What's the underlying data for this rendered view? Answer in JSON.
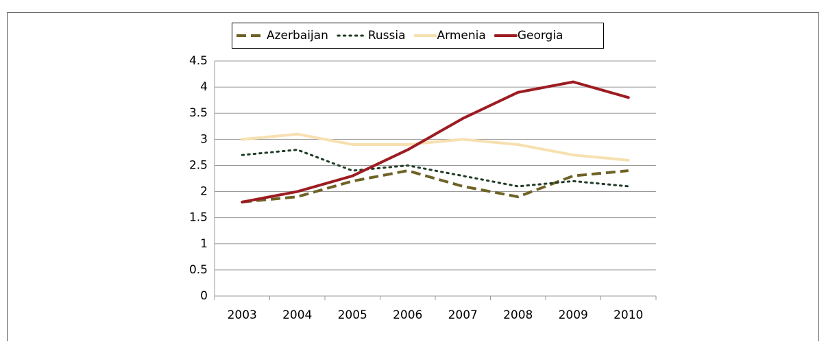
{
  "chart_data": {
    "type": "line",
    "categories": [
      "2003",
      "2004",
      "2005",
      "2006",
      "2007",
      "2008",
      "2009",
      "2010"
    ],
    "series": [
      {
        "name": "Azerbaijan",
        "color": "#6e6226",
        "dash": "dashed",
        "values": [
          1.8,
          1.9,
          2.2,
          2.4,
          2.1,
          1.9,
          2.3,
          2.4
        ]
      },
      {
        "name": "Russia",
        "color": "#1e3b26",
        "dash": "dotted",
        "values": [
          2.7,
          2.8,
          2.4,
          2.5,
          2.3,
          2.1,
          2.2,
          2.1
        ]
      },
      {
        "name": "Armenia",
        "color": "#f7e0b0",
        "dash": "solid",
        "values": [
          3.0,
          3.1,
          2.9,
          2.9,
          3.0,
          2.9,
          2.7,
          2.6
        ]
      },
      {
        "name": "Georgia",
        "color": "#9c1c22",
        "dash": "solid",
        "values": [
          1.8,
          2.0,
          2.3,
          2.8,
          3.4,
          3.9,
          4.1,
          3.8
        ]
      }
    ],
    "ylim": [
      0,
      4.5
    ],
    "yticks": [
      0,
      0.5,
      1,
      1.5,
      2,
      2.5,
      3,
      3.5,
      4,
      4.5
    ],
    "grid": true,
    "legend": "top"
  }
}
